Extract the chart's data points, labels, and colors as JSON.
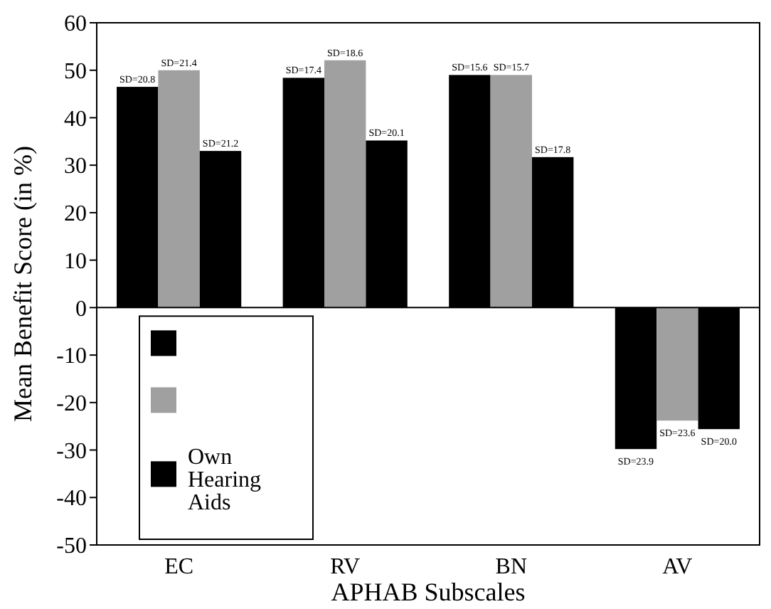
{
  "chart_data": {
    "type": "bar",
    "xlabel": "APHAB Subscales",
    "ylabel": "Mean Benefit Score (in %)",
    "categories": [
      "EC",
      "RV",
      "BN",
      "AV"
    ],
    "series": [
      {
        "color": "#000000",
        "values": [
          46.5,
          48.4,
          49,
          -29.8
        ]
      },
      {
        "color": "#a0a0a0",
        "values": [
          50,
          52.1,
          49,
          -23.8
        ]
      },
      {
        "name": "Own Hearing Aids",
        "color": "#000000",
        "values": [
          33,
          35.2,
          31.7,
          -25.6
        ]
      }
    ],
    "ylim": [
      -50,
      60
    ],
    "yticks": [
      -50,
      -40,
      -30,
      -20,
      -10,
      0,
      10,
      20,
      30,
      40,
      50,
      60
    ],
    "legend": "bottom left",
    "annotations": [
      "SD=20.8",
      "SD=21.4",
      "SD=21.2",
      "SD=17.4",
      "SD=18.6",
      "SD=20.1",
      "SD=15.6",
      "SD=15.7",
      "SD=17.8",
      "SD=23.9",
      "SD=23.6",
      "SD=20.0"
    ]
  }
}
